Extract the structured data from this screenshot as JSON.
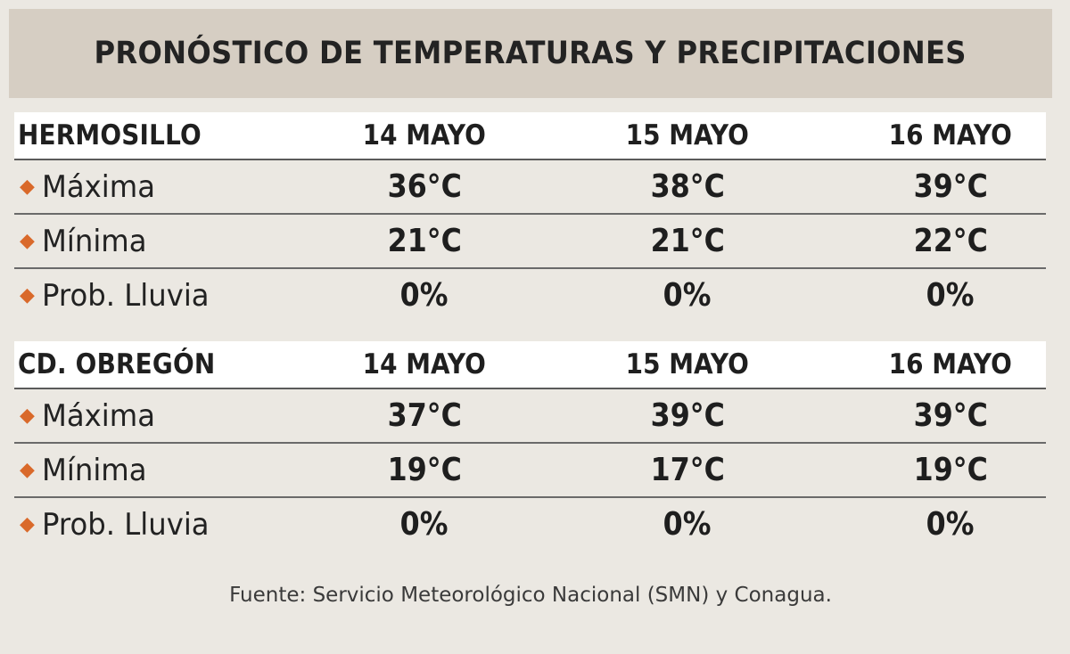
{
  "chart_data": {
    "type": "table",
    "title": "PRONÓSTICO DE TEMPERATURAS Y PRECIPITACIONES",
    "bullet_color": "#d9692a",
    "header_band_color": "#d6cec3",
    "sections": [
      {
        "city": "HERMOSILLO",
        "dates": [
          "14 MAYO",
          "15 MAYO",
          "16 MAYO"
        ],
        "rows": [
          {
            "label": "Máxima",
            "values": [
              "36°C",
              "38°C",
              "39°C"
            ]
          },
          {
            "label": "Mínima",
            "values": [
              "21°C",
              "21°C",
              "22°C"
            ]
          },
          {
            "label": "Prob. Lluvia",
            "values": [
              "0%",
              "0%",
              "0%"
            ]
          }
        ]
      },
      {
        "city": "CD. OBREGÓN",
        "dates": [
          "14 MAYO",
          "15 MAYO",
          "16 MAYO"
        ],
        "rows": [
          {
            "label": "Máxima",
            "values": [
              "37°C",
              "39°C",
              "39°C"
            ]
          },
          {
            "label": "Mínima",
            "values": [
              "19°C",
              "17°C",
              "19°C"
            ]
          },
          {
            "label": "Prob. Lluvia",
            "values": [
              "0%",
              "0%",
              "0%"
            ]
          }
        ]
      }
    ],
    "source": "Fuente: Servicio Meteorológico Nacional (SMN) y Conagua."
  }
}
